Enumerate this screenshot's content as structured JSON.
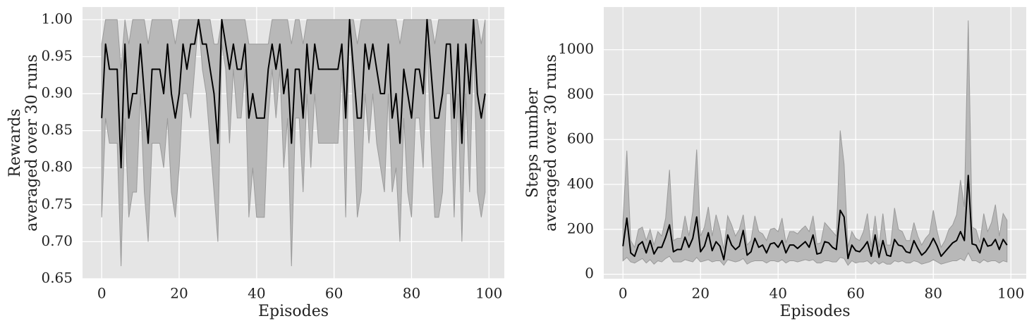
{
  "chart_data": [
    {
      "type": "band-line",
      "ylabel": [
        "Rewards",
        "averaged over 30 runs"
      ],
      "xlabel": "Episodes",
      "xlim": [
        -4.95,
        103.95
      ],
      "xticks": [
        0,
        20,
        40,
        60,
        80,
        100
      ],
      "ylim": [
        0.65,
        1.017
      ],
      "yticks": [
        0.65,
        {
          "value": 0.7,
          "label": "0.70"
        },
        0.75,
        {
          "value": 0.8,
          "label": "0.80"
        },
        0.85,
        {
          "value": 0.9,
          "label": "0.90"
        },
        0.95,
        {
          "value": 1,
          "label": "1.00"
        }
      ],
      "grid": true,
      "x": [
        0,
        1,
        2,
        3,
        4,
        5,
        6,
        7,
        8,
        9,
        10,
        11,
        12,
        13,
        14,
        15,
        16,
        17,
        18,
        19,
        20,
        21,
        22,
        23,
        24,
        25,
        26,
        27,
        28,
        29,
        30,
        31,
        32,
        33,
        34,
        35,
        36,
        37,
        38,
        39,
        40,
        41,
        42,
        43,
        44,
        45,
        46,
        47,
        48,
        49,
        50,
        51,
        52,
        53,
        54,
        55,
        56,
        57,
        58,
        59,
        60,
        61,
        62,
        63,
        64,
        65,
        66,
        67,
        68,
        69,
        70,
        71,
        72,
        73,
        74,
        75,
        76,
        77,
        78,
        79,
        80,
        81,
        82,
        83,
        84,
        85,
        86,
        87,
        88,
        89,
        90,
        91,
        92,
        93,
        94,
        95,
        96,
        97,
        98,
        99
      ],
      "series": [
        {
          "color": "#000000",
          "band_color": "#b8b8b8",
          "band_edge": "#9a9a9a",
          "values": [
            0.867,
            0.967,
            0.933,
            0.933,
            0.933,
            0.8,
            0.967,
            0.867,
            0.9,
            0.9,
            0.967,
            0.9,
            0.833,
            0.933,
            0.933,
            0.933,
            0.9,
            0.967,
            0.9,
            0.867,
            0.9,
            0.967,
            0.933,
            0.967,
            0.967,
            1,
            0.967,
            0.967,
            0.933,
            0.9,
            0.833,
            1,
            0.967,
            0.933,
            0.967,
            0.933,
            0.933,
            0.967,
            0.867,
            0.9,
            0.867,
            0.867,
            0.867,
            0.933,
            0.967,
            0.933,
            0.967,
            0.9,
            0.933,
            0.833,
            0.933,
            0.933,
            0.867,
            0.967,
            0.9,
            0.967,
            0.933,
            0.933,
            0.933,
            0.933,
            0.933,
            0.933,
            0.967,
            0.867,
            1,
            0.933,
            0.867,
            0.867,
            0.967,
            0.933,
            0.967,
            0.933,
            0.9,
            0.9,
            0.967,
            0.867,
            0.9,
            0.833,
            0.933,
            0.9,
            0.867,
            0.933,
            0.933,
            0.9,
            1,
            0.933,
            0.867,
            0.867,
            0.9,
            0.967,
            0.967,
            0.867,
            0.967,
            0.833,
            0.967,
            0.9,
            1,
            0.9,
            0.867,
            0.9
          ],
          "lower": [
            0.733,
            0.867,
            0.833,
            0.833,
            0.833,
            0.667,
            0.867,
            0.733,
            0.767,
            0.767,
            0.9,
            0.767,
            0.7,
            0.833,
            0.833,
            0.833,
            0.8,
            0.867,
            0.767,
            0.733,
            0.8,
            0.9,
            0.9,
            0.867,
            0.933,
            1,
            0.933,
            0.9,
            0.833,
            0.767,
            0.7,
            0.967,
            0.933,
            0.833,
            0.933,
            0.867,
            0.867,
            0.933,
            0.733,
            0.8,
            0.733,
            0.733,
            0.733,
            0.867,
            0.933,
            0.867,
            0.933,
            0.8,
            0.867,
            0.667,
            0.867,
            0.867,
            0.767,
            0.9,
            0.8,
            0.9,
            0.833,
            0.833,
            0.833,
            0.833,
            0.833,
            0.833,
            0.933,
            0.733,
            1,
            0.867,
            0.733,
            0.767,
            0.9,
            0.833,
            0.9,
            0.833,
            0.8,
            0.767,
            0.9,
            0.767,
            0.8,
            0.7,
            0.867,
            0.767,
            0.733,
            0.867,
            0.867,
            0.8,
            0.967,
            0.833,
            0.733,
            0.733,
            0.767,
            0.9,
            0.9,
            0.733,
            0.9,
            0.7,
            0.9,
            0.767,
            0.967,
            0.767,
            0.733,
            0.767
          ],
          "upper": [
            0.967,
            1,
            1,
            1,
            1,
            0.933,
            1,
            0.967,
            1,
            1,
            1,
            1,
            0.967,
            1,
            1,
            1,
            1,
            1,
            1,
            0.967,
            1,
            1,
            1,
            1,
            1,
            1,
            1,
            1,
            1,
            0.967,
            0.967,
            1,
            1,
            1,
            1,
            1,
            1,
            1,
            0.967,
            0.967,
            0.967,
            0.967,
            0.967,
            0.967,
            1,
            1,
            1,
            1,
            1,
            0.967,
            1,
            1,
            0.967,
            1,
            1,
            1,
            1,
            1,
            1,
            1,
            1,
            1,
            1,
            1,
            1,
            1,
            0.967,
            1,
            1,
            1,
            1,
            1,
            1,
            1,
            1,
            1,
            1,
            0.967,
            1,
            1,
            1,
            1,
            1,
            1,
            1,
            1,
            0.967,
            1,
            1,
            1,
            1,
            1,
            1,
            1,
            1,
            1,
            1,
            1,
            0.967,
            1
          ]
        }
      ]
    },
    {
      "type": "band-line",
      "ylabel": [
        "Steps number",
        "averaged over 30 runs"
      ],
      "xlabel": "Episodes",
      "xlim": [
        -4.95,
        103.95
      ],
      "xticks": [
        0,
        20,
        40,
        60,
        80,
        100
      ],
      "ylim": [
        -20,
        1190
      ],
      "yticks": [
        0,
        200,
        400,
        600,
        800,
        1000
      ],
      "grid": true,
      "x": [
        0,
        1,
        2,
        3,
        4,
        5,
        6,
        7,
        8,
        9,
        10,
        11,
        12,
        13,
        14,
        15,
        16,
        17,
        18,
        19,
        20,
        21,
        22,
        23,
        24,
        25,
        26,
        27,
        28,
        29,
        30,
        31,
        32,
        33,
        34,
        35,
        36,
        37,
        38,
        39,
        40,
        41,
        42,
        43,
        44,
        45,
        46,
        47,
        48,
        49,
        50,
        51,
        52,
        53,
        54,
        55,
        56,
        57,
        58,
        59,
        60,
        61,
        62,
        63,
        64,
        65,
        66,
        67,
        68,
        69,
        70,
        71,
        72,
        73,
        74,
        75,
        76,
        77,
        78,
        79,
        80,
        81,
        82,
        83,
        84,
        85,
        86,
        87,
        88,
        89,
        90,
        91,
        92,
        93,
        94,
        95,
        96,
        97,
        98,
        99
      ],
      "series": [
        {
          "color": "#000000",
          "band_color": "#b8b8b8",
          "band_edge": "#9a9a9a",
          "values": [
            125,
            250,
            95,
            80,
            130,
            145,
            95,
            150,
            90,
            120,
            120,
            165,
            220,
            100,
            110,
            110,
            165,
            120,
            160,
            255,
            100,
            125,
            185,
            105,
            145,
            125,
            65,
            175,
            130,
            110,
            125,
            195,
            85,
            100,
            160,
            120,
            130,
            95,
            135,
            140,
            120,
            150,
            95,
            130,
            130,
            115,
            130,
            145,
            120,
            175,
            90,
            95,
            145,
            140,
            120,
            110,
            285,
            255,
            70,
            130,
            105,
            100,
            120,
            145,
            80,
            175,
            75,
            150,
            85,
            80,
            155,
            130,
            125,
            100,
            95,
            150,
            115,
            85,
            100,
            125,
            160,
            125,
            80,
            100,
            120,
            140,
            150,
            190,
            150,
            440,
            135,
            130,
            95,
            160,
            125,
            130,
            155,
            110,
            155,
            130
          ],
          "lower": [
            60,
            75,
            55,
            50,
            60,
            70,
            50,
            65,
            45,
            60,
            55,
            70,
            80,
            55,
            55,
            55,
            65,
            60,
            55,
            75,
            55,
            60,
            65,
            55,
            60,
            60,
            40,
            65,
            60,
            55,
            60,
            70,
            45,
            55,
            60,
            60,
            60,
            50,
            60,
            60,
            55,
            65,
            50,
            60,
            60,
            55,
            60,
            65,
            60,
            65,
            50,
            50,
            60,
            60,
            55,
            55,
            75,
            70,
            40,
            60,
            50,
            55,
            55,
            60,
            45,
            60,
            45,
            55,
            45,
            45,
            60,
            55,
            60,
            50,
            50,
            60,
            55,
            45,
            50,
            55,
            65,
            55,
            45,
            50,
            55,
            60,
            60,
            70,
            60,
            95,
            60,
            60,
            50,
            65,
            55,
            60,
            60,
            50,
            60,
            55
          ],
          "upper": [
            240,
            550,
            150,
            120,
            200,
            210,
            150,
            200,
            130,
            190,
            170,
            250,
            465,
            150,
            160,
            160,
            260,
            170,
            280,
            555,
            170,
            210,
            300,
            170,
            265,
            200,
            110,
            260,
            220,
            170,
            200,
            265,
            130,
            150,
            260,
            190,
            180,
            150,
            200,
            205,
            190,
            250,
            140,
            190,
            190,
            180,
            200,
            215,
            190,
            260,
            135,
            140,
            230,
            210,
            190,
            170,
            640,
            490,
            120,
            190,
            160,
            150,
            190,
            270,
            120,
            260,
            120,
            270,
            130,
            130,
            295,
            200,
            190,
            150,
            150,
            230,
            170,
            130,
            160,
            180,
            285,
            190,
            120,
            150,
            200,
            220,
            265,
            420,
            300,
            1130,
            210,
            200,
            140,
            270,
            190,
            230,
            310,
            170,
            270,
            240
          ]
        }
      ]
    }
  ]
}
